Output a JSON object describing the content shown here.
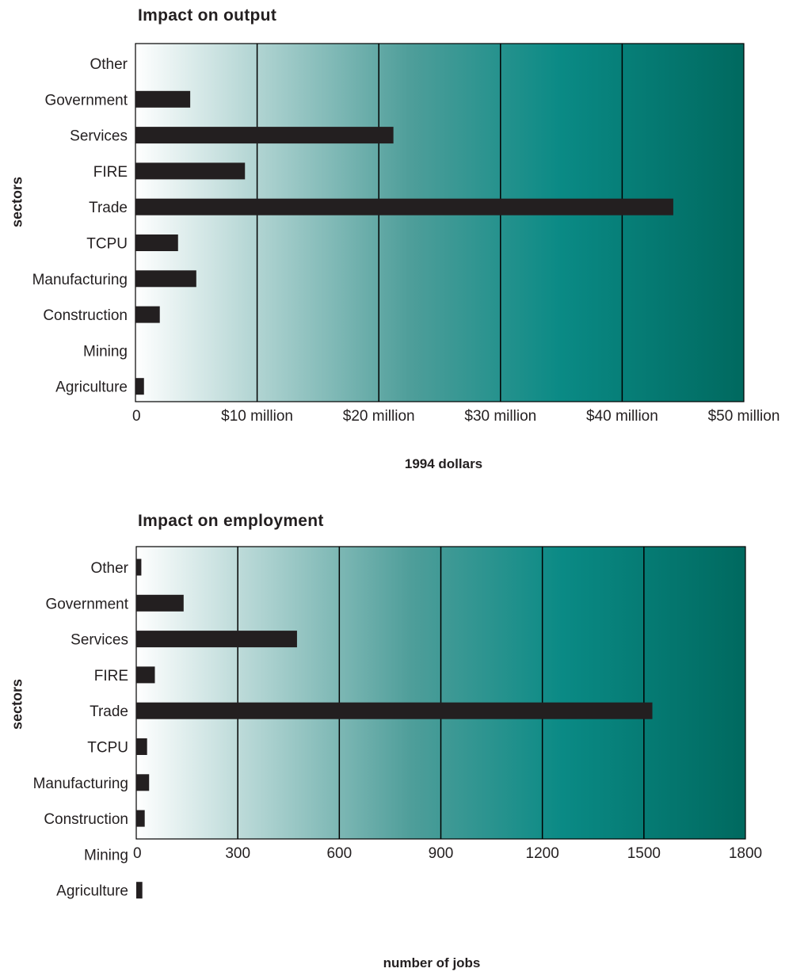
{
  "colors": {
    "gradient_start": "#ffffff",
    "gradient_mid": "#4f9e9a",
    "gradient_end": "#00695f",
    "bar": "#231f20",
    "grid": "#000000"
  },
  "chart_data": [
    {
      "type": "bar",
      "orientation": "horizontal",
      "title": "Impact on output",
      "xlabel": "1994 dollars",
      "ylabel": "sectors",
      "categories": [
        "Other",
        "Government",
        "Services",
        "FIRE",
        "Trade",
        "TCPU",
        "Manufacturing",
        "Construction",
        "Mining",
        "Agriculture"
      ],
      "values": [
        0,
        4.5,
        21.2,
        9.0,
        44.2,
        3.5,
        5.0,
        2.0,
        0,
        0.7
      ],
      "xlim": [
        0,
        50
      ],
      "xticks": [
        0,
        10,
        20,
        30,
        40,
        50
      ],
      "xtick_labels": [
        "0",
        "$10 million",
        "$20 million",
        "$30 million",
        "$40 million",
        "$50 million"
      ],
      "grid": true
    },
    {
      "type": "bar",
      "orientation": "horizontal",
      "title": "Impact on employment",
      "xlabel": "number of jobs",
      "ylabel": "sectors",
      "categories": [
        "Other",
        "Government",
        "Services",
        "FIRE",
        "Trade",
        "TCPU",
        "Manufacturing",
        "Construction",
        "Mining",
        "Agriculture"
      ],
      "values": [
        15,
        140,
        475,
        55,
        1525,
        32,
        38,
        25,
        0,
        18
      ],
      "xlim": [
        0,
        1800
      ],
      "xticks": [
        0,
        300,
        600,
        900,
        1200,
        1500,
        1800
      ],
      "xtick_labels": [
        "0",
        "300",
        "600",
        "900",
        "1200",
        "1500",
        "1800"
      ],
      "grid": true
    }
  ]
}
